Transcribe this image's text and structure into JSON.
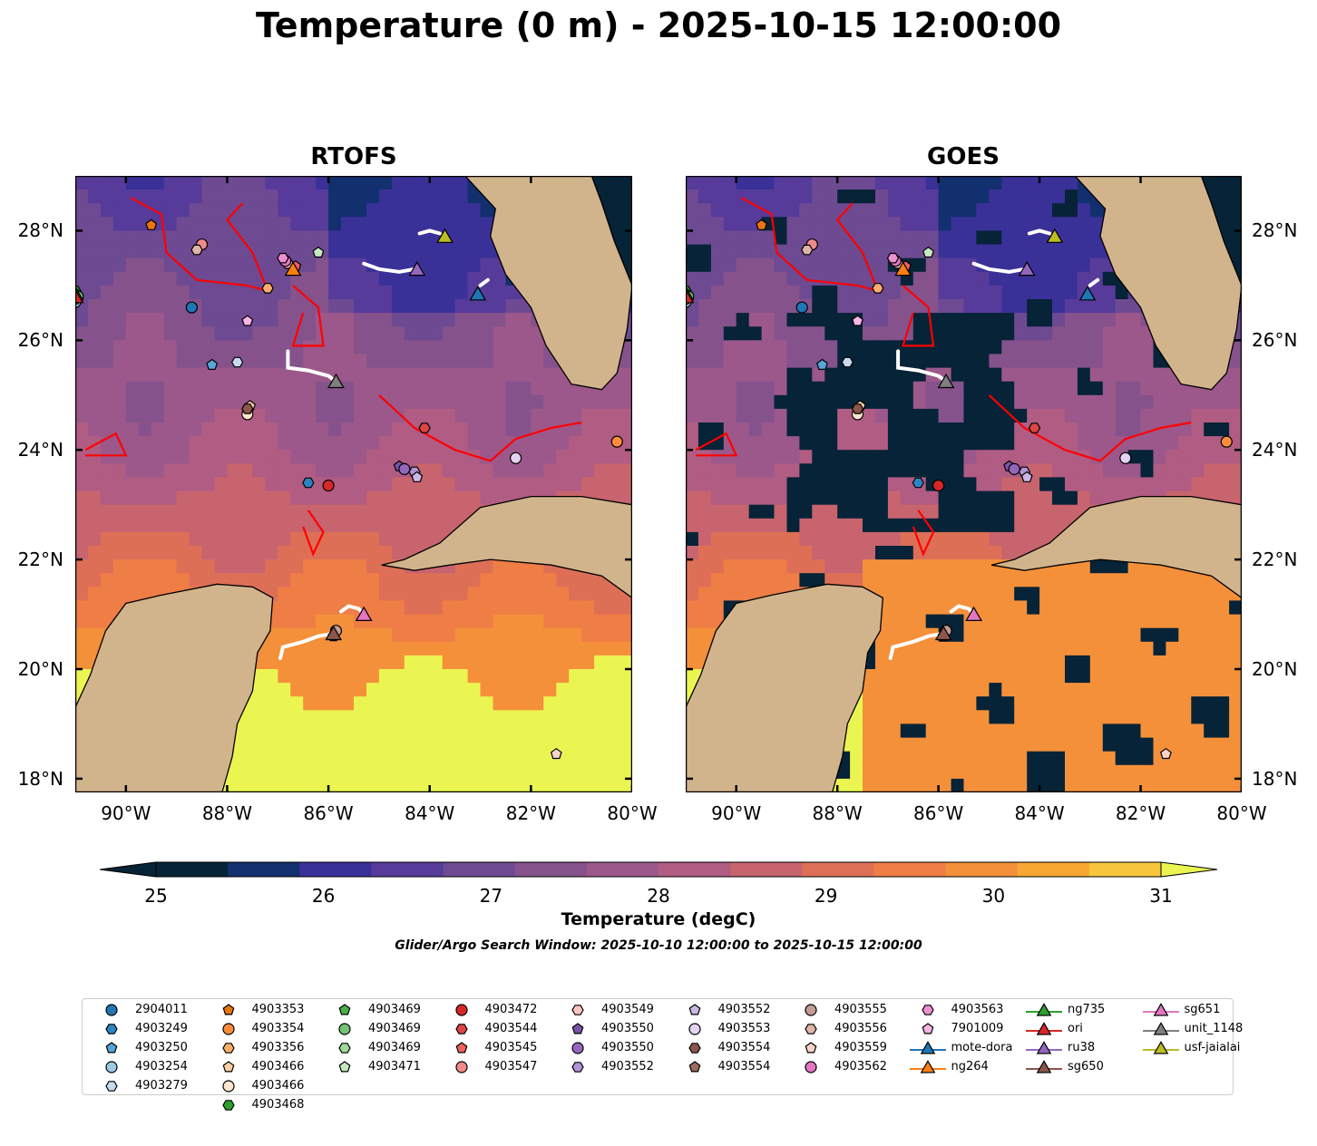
{
  "title": "Temperature (0 m) - 2025-10-15 12:00:00",
  "panels": [
    {
      "title": "RTOFS",
      "mode": "model"
    },
    {
      "title": "GOES",
      "mode": "satellite"
    }
  ],
  "map": {
    "lon_range": [
      -91,
      -80
    ],
    "lat_range": [
      17.75,
      29
    ],
    "lon_ticks": [
      -90,
      -88,
      -86,
      -84,
      -82,
      -80
    ],
    "lat_ticks": [
      18,
      20,
      22,
      24,
      26,
      28
    ],
    "lon_tick_labels": [
      "90°W",
      "88°W",
      "86°W",
      "84°W",
      "82°W",
      "80°W"
    ],
    "lat_tick_labels": [
      "18°N",
      "20°N",
      "22°N",
      "24°N",
      "26°N",
      "28°N"
    ],
    "land_color": "#d2b48c",
    "contour_color": "#ff0000",
    "track_color": "#ffffff"
  },
  "colorbar": {
    "label": "Temperature (degC)",
    "min": 25,
    "max": 31,
    "step": 0.5,
    "ticks": [
      "25",
      "26",
      "27",
      "28",
      "29",
      "30",
      "31"
    ],
    "colors": [
      "#062337",
      "#13306e",
      "#3a3198",
      "#573b9a",
      "#6d4a92",
      "#85528c",
      "#9c588a",
      "#b05c83",
      "#c7646e",
      "#de6f57",
      "#ee7d46",
      "#f5903a",
      "#f8a832",
      "#f8c63c"
    ],
    "under_color": "#062337",
    "over_color": "#eaf552"
  },
  "search_window": "Glider/Argo Search Window: 2025-10-10 12:00:00 to 2025-10-15 12:00:00",
  "platforms": [
    {
      "name": "2904011",
      "marker": "circle",
      "color": "#1f77b4",
      "lon": -88.7,
      "lat": 26.6
    },
    {
      "name": "4903249",
      "marker": "hexagon",
      "color": "#2a85c2",
      "lon": -86.4,
      "lat": 23.4
    },
    {
      "name": "4903250",
      "marker": "pentagon",
      "color": "#56a6d8",
      "lon": -88.3,
      "lat": 25.55
    },
    {
      "name": "4903254",
      "marker": "circle",
      "color": "#9ecae1",
      "lon": -91.0,
      "lat": 26.7
    },
    {
      "name": "4903279",
      "marker": "hexagon",
      "color": "#c6dbef",
      "lon": -87.8,
      "lat": 25.6
    },
    {
      "name": "4903353",
      "marker": "pentagon",
      "color": "#e6750f",
      "lon": -89.5,
      "lat": 28.1
    },
    {
      "name": "4903354",
      "marker": "circle",
      "color": "#fd8d3c",
      "lon": -80.3,
      "lat": 24.15
    },
    {
      "name": "4903356",
      "marker": "hexagon",
      "color": "#fdae6b",
      "lon": -87.2,
      "lat": 26.95
    },
    {
      "name": "4903466",
      "marker": "pentagon",
      "color": "#fdd0a2",
      "lon": -87.55,
      "lat": 24.8
    },
    {
      "name": "4903466",
      "marker": "circle",
      "color": "#fee6ce",
      "lon": -87.6,
      "lat": 24.65
    },
    {
      "name": "4903468",
      "marker": "hexagon",
      "color": "#2ca02c",
      "lon": -91.0,
      "lat": 26.9
    },
    {
      "name": "4903469",
      "marker": "pentagon",
      "color": "#4aaf4a",
      "lon": -91.0,
      "lat": 26.85
    },
    {
      "name": "4903469",
      "marker": "circle",
      "color": "#74c476",
      "lon": -90.95,
      "lat": 26.8
    },
    {
      "name": "4903469",
      "marker": "hexagon",
      "color": "#a1d99b",
      "lon": -91.0,
      "lat": 26.75
    },
    {
      "name": "4903471",
      "marker": "pentagon",
      "color": "#c7e9c0",
      "lon": -86.2,
      "lat": 27.6
    },
    {
      "name": "4903472",
      "marker": "circle",
      "color": "#d62728",
      "lon": -86.0,
      "lat": 23.35
    },
    {
      "name": "4903544",
      "marker": "hexagon",
      "color": "#de4545",
      "lon": -84.1,
      "lat": 24.4
    },
    {
      "name": "4903545",
      "marker": "pentagon",
      "color": "#f06060",
      "lon": -86.65,
      "lat": 27.35
    },
    {
      "name": "4903547",
      "marker": "circle",
      "color": "#f08a8a",
      "lon": -88.5,
      "lat": 27.75
    },
    {
      "name": "4903549",
      "marker": "hexagon",
      "color": "#fcc5c0",
      "lon": -86.8,
      "lat": 27.4
    },
    {
      "name": "4903550",
      "marker": "pentagon",
      "color": "#7b52ab",
      "lon": -84.6,
      "lat": 23.7
    },
    {
      "name": "4903550",
      "marker": "circle",
      "color": "#9467bd",
      "lon": -84.5,
      "lat": 23.65
    },
    {
      "name": "4903552",
      "marker": "hexagon",
      "color": "#b294d4",
      "lon": -84.3,
      "lat": 23.6
    },
    {
      "name": "4903552",
      "marker": "pentagon",
      "color": "#cbb8e6",
      "lon": -84.25,
      "lat": 23.5
    },
    {
      "name": "4903553",
      "marker": "circle",
      "color": "#e2d3f2",
      "lon": -82.3,
      "lat": 23.85
    },
    {
      "name": "4903554",
      "marker": "hexagon",
      "color": "#8c564b",
      "lon": -87.6,
      "lat": 24.75
    },
    {
      "name": "4903554",
      "marker": "pentagon",
      "color": "#9e6a5f",
      "lon": -85.9,
      "lat": 20.6
    },
    {
      "name": "4903555",
      "marker": "circle",
      "color": "#c49c94",
      "lon": -85.85,
      "lat": 20.7
    },
    {
      "name": "4903556",
      "marker": "hexagon",
      "color": "#e0b4a8",
      "lon": -88.6,
      "lat": 27.65
    },
    {
      "name": "4903559",
      "marker": "pentagon",
      "color": "#f7d3c9",
      "lon": -81.5,
      "lat": 18.45
    },
    {
      "name": "4903562",
      "marker": "circle",
      "color": "#e377c2",
      "lon": -86.85,
      "lat": 27.45
    },
    {
      "name": "4903563",
      "marker": "hexagon",
      "color": "#ef8fd3",
      "lon": -86.9,
      "lat": 27.5
    },
    {
      "name": "7901009",
      "marker": "pentagon",
      "color": "#f7b6e6",
      "lon": -87.6,
      "lat": 26.35
    }
  ],
  "gliders": [
    {
      "name": "mote-dora",
      "color": "#1f77b4",
      "lon": -83.05,
      "lat": 26.85,
      "track": [
        [
          -83.0,
          27.0
        ],
        [
          -82.85,
          27.1
        ]
      ]
    },
    {
      "name": "ng264",
      "color": "#ff7f0e",
      "lon": -86.7,
      "lat": 27.3,
      "track": [
        [
          -86.9,
          27.55
        ],
        [
          -86.8,
          27.4
        ]
      ]
    },
    {
      "name": "ng735",
      "color": "#2ca02c",
      "lon": -91.0,
      "lat": 26.85,
      "track": []
    },
    {
      "name": "ori",
      "color": "#d62728",
      "lon": -91.0,
      "lat": 26.8,
      "track": []
    },
    {
      "name": "ru38",
      "color": "#9467bd",
      "lon": -84.25,
      "lat": 27.3,
      "track": [
        [
          -85.3,
          27.4
        ],
        [
          -85.0,
          27.3
        ],
        [
          -84.6,
          27.25
        ],
        [
          -84.3,
          27.3
        ]
      ]
    },
    {
      "name": "sg650",
      "color": "#8c564b",
      "lon": -85.9,
      "lat": 20.65,
      "track": [
        [
          -86.95,
          20.2
        ],
        [
          -86.9,
          20.4
        ],
        [
          -86.5,
          20.5
        ],
        [
          -86.2,
          20.6
        ],
        [
          -85.9,
          20.65
        ]
      ]
    },
    {
      "name": "sg651",
      "color": "#e377c2",
      "lon": -85.3,
      "lat": 21.0,
      "track": [
        [
          -85.75,
          21.05
        ],
        [
          -85.6,
          21.15
        ],
        [
          -85.4,
          21.1
        ],
        [
          -85.3,
          21.0
        ]
      ]
    },
    {
      "name": "unit_1148",
      "color": "#7f7f7f",
      "lon": -85.85,
      "lat": 25.25,
      "track": [
        [
          -86.8,
          25.8
        ],
        [
          -86.8,
          25.5
        ],
        [
          -86.4,
          25.45
        ],
        [
          -86.0,
          25.35
        ],
        [
          -85.85,
          25.25
        ]
      ]
    },
    {
      "name": "usf-jaialai",
      "color": "#bcbd22",
      "lon": -83.7,
      "lat": 27.9,
      "track": [
        [
          -84.2,
          27.95
        ],
        [
          -84.0,
          28.0
        ],
        [
          -83.8,
          27.95
        ]
      ]
    }
  ]
}
